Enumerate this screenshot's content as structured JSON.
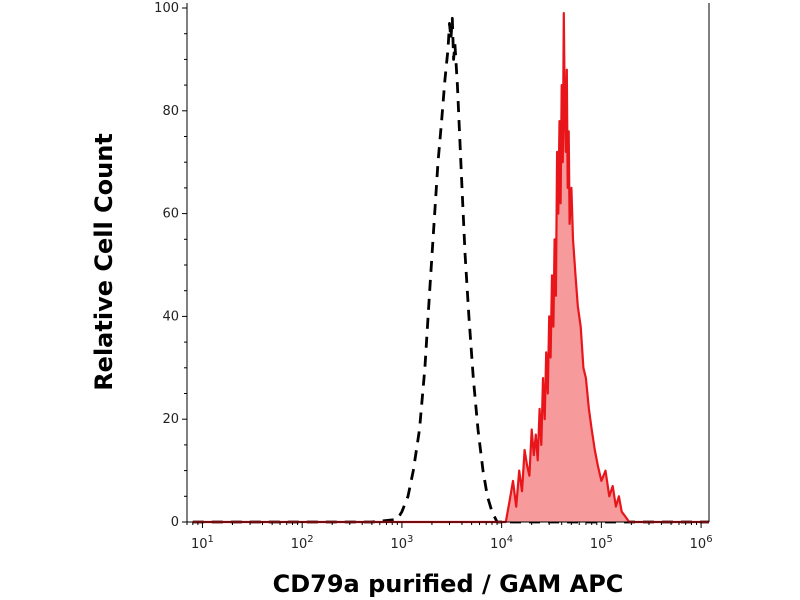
{
  "chart_data": {
    "type": "area",
    "title": "",
    "xlabel": "CD79a purified / GAM APC",
    "ylabel": "Relative Cell Count",
    "x_scale": "log",
    "xlim": [
      7,
      1200000
    ],
    "ylim": [
      0,
      100
    ],
    "grid": false,
    "legend": "none",
    "x_ticks": [
      {
        "value": 10,
        "base": "10",
        "exp": "1"
      },
      {
        "value": 100,
        "base": "10",
        "exp": "2"
      },
      {
        "value": 1000,
        "base": "10",
        "exp": "3"
      },
      {
        "value": 10000,
        "base": "10",
        "exp": "4"
      },
      {
        "value": 100000,
        "base": "10",
        "exp": "5"
      },
      {
        "value": 1000000,
        "base": "10",
        "exp": "6"
      }
    ],
    "y_ticks": [
      {
        "value": 0,
        "label": "0"
      },
      {
        "value": 20,
        "label": "20"
      },
      {
        "value": 40,
        "label": "40"
      },
      {
        "value": 60,
        "label": "60"
      },
      {
        "value": 80,
        "label": "80"
      },
      {
        "value": 100,
        "label": "100"
      }
    ],
    "series": [
      {
        "style": "dashed",
        "color": "#000000",
        "x": [
          8,
          500,
          900,
          1000,
          1150,
          1300,
          1500,
          1700,
          1900,
          2100,
          2300,
          2500,
          2700,
          2900,
          3000,
          3100,
          3200,
          3300,
          3400,
          3600,
          3800,
          4000,
          4300,
          4700,
          5200,
          5800,
          6500,
          7200,
          8000,
          9000,
          1200000
        ],
        "y": [
          0,
          0,
          0.5,
          2,
          5,
          10,
          18,
          30,
          45,
          58,
          70,
          78,
          86,
          92,
          97,
          94,
          98,
          90,
          93,
          85,
          75,
          65,
          52,
          40,
          28,
          18,
          10,
          5,
          2,
          0,
          0
        ]
      },
      {
        "style": "filled",
        "color": "#e8161b",
        "fill": "#f79a9c",
        "x": [
          8,
          11000,
          12000,
          13000,
          14000,
          15000,
          16000,
          17000,
          18000,
          19000,
          20000,
          21000,
          22000,
          23000,
          24000,
          25000,
          26000,
          27000,
          28000,
          29000,
          30000,
          31000,
          32000,
          33000,
          34000,
          35000,
          36000,
          37000,
          38000,
          39000,
          40000,
          41000,
          42000,
          43000,
          44000,
          45000,
          46000,
          47000,
          48000,
          50000,
          52000,
          55000,
          58000,
          62000,
          66000,
          70000,
          75000,
          80000,
          86000,
          92000,
          100000,
          110000,
          120000,
          130000,
          140000,
          150000,
          160000,
          175000,
          190000,
          1200000
        ],
        "y": [
          0,
          0,
          4,
          8,
          3,
          10,
          6,
          14,
          11,
          9,
          18,
          13,
          17,
          12,
          22,
          15,
          28,
          20,
          33,
          25,
          40,
          32,
          48,
          38,
          55,
          44,
          72,
          60,
          78,
          62,
          85,
          70,
          99,
          80,
          72,
          88,
          65,
          76,
          58,
          65,
          55,
          48,
          42,
          38,
          30,
          28,
          22,
          18,
          14,
          11,
          8,
          10,
          5,
          7,
          3,
          5,
          2,
          1,
          0,
          0
        ]
      }
    ]
  }
}
